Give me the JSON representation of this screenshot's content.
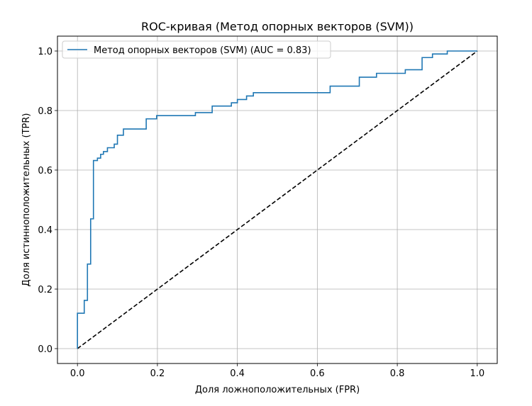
{
  "chart_data": {
    "type": "line",
    "title": "ROC-кривая (Метод опорных векторов (SVM))",
    "xlabel": "Доля ложноположительных (FPR)",
    "ylabel": "Доля истинноположительных (TPR)",
    "xlim": [
      -0.05,
      1.05
    ],
    "ylim": [
      -0.05,
      1.05
    ],
    "xticks": [
      "0.0",
      "0.2",
      "0.4",
      "0.6",
      "0.8",
      "1.0"
    ],
    "yticks": [
      "0.0",
      "0.2",
      "0.4",
      "0.6",
      "0.8",
      "1.0"
    ],
    "grid": true,
    "legend_position": "top-left",
    "series": [
      {
        "name": "Метод опорных векторов (SVM) (AUC = 0.83)",
        "color": "#1f77b4",
        "style": "solid",
        "step": true,
        "x": [
          0.0,
          0.0,
          0.017,
          0.017,
          0.025,
          0.025,
          0.033,
          0.033,
          0.04,
          0.04,
          0.05,
          0.05,
          0.058,
          0.058,
          0.065,
          0.065,
          0.075,
          0.075,
          0.092,
          0.092,
          0.1,
          0.1,
          0.115,
          0.115,
          0.172,
          0.172,
          0.198,
          0.198,
          0.295,
          0.295,
          0.337,
          0.337,
          0.385,
          0.385,
          0.4,
          0.4,
          0.423,
          0.423,
          0.44,
          0.44,
          0.632,
          0.632,
          0.705,
          0.705,
          0.748,
          0.748,
          0.82,
          0.82,
          0.862,
          0.862,
          0.888,
          0.888,
          0.925,
          0.925,
          1.0
        ],
        "y": [
          0.0,
          0.119,
          0.119,
          0.162,
          0.162,
          0.284,
          0.284,
          0.436,
          0.436,
          0.632,
          0.632,
          0.64,
          0.64,
          0.653,
          0.653,
          0.662,
          0.662,
          0.675,
          0.675,
          0.687,
          0.687,
          0.717,
          0.717,
          0.738,
          0.738,
          0.772,
          0.772,
          0.783,
          0.783,
          0.793,
          0.793,
          0.815,
          0.815,
          0.826,
          0.826,
          0.837,
          0.837,
          0.849,
          0.849,
          0.86,
          0.86,
          0.882,
          0.882,
          0.912,
          0.912,
          0.925,
          0.925,
          0.937,
          0.937,
          0.978,
          0.978,
          0.99,
          0.99,
          1.0,
          1.0
        ]
      },
      {
        "name": "",
        "color": "#000000",
        "style": "dashed",
        "x": [
          0.0,
          1.0
        ],
        "y": [
          0.0,
          1.0
        ]
      }
    ]
  }
}
